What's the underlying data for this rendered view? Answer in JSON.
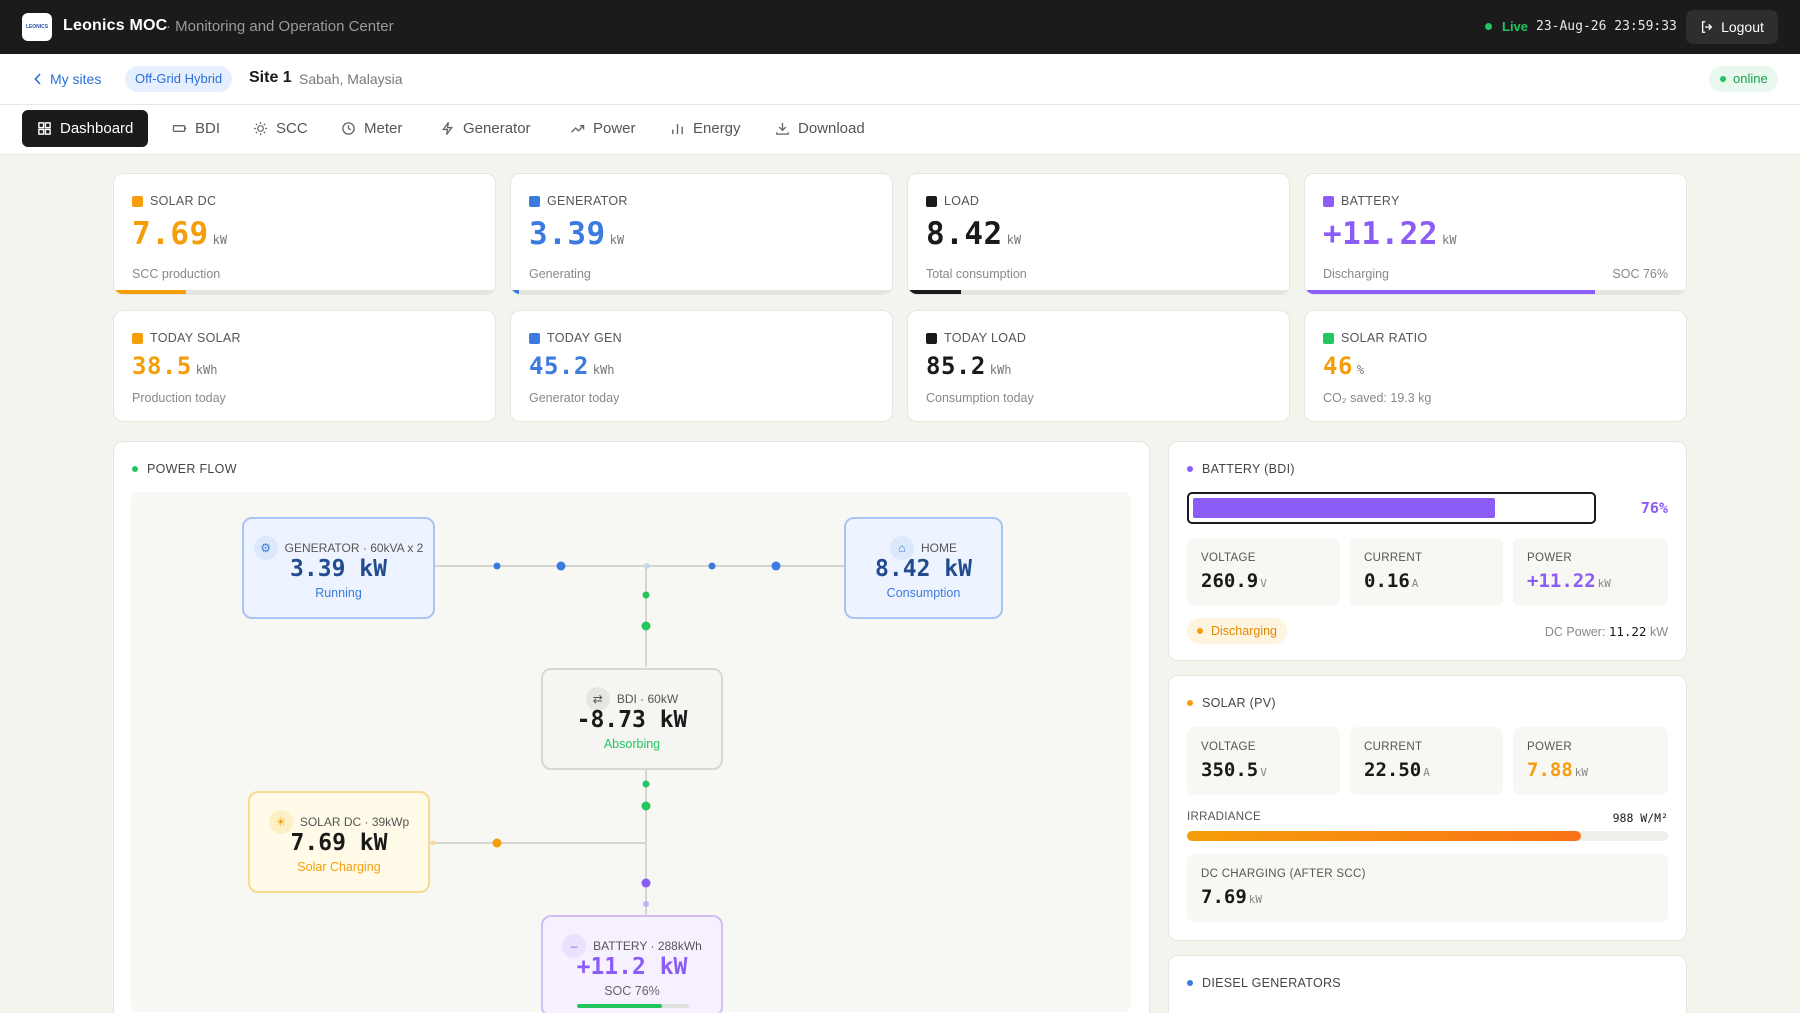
{
  "header": {
    "logo_text": "LEONICS",
    "app_title": "Leonics MOC",
    "app_subtitle": "· Monitoring and Operation Center",
    "live_label": "Live",
    "datetime": "23-Aug-26 23:59:33",
    "logout_label": "Logout"
  },
  "site": {
    "back_label": "My sites",
    "type_tag": "Off-Grid Hybrid",
    "name": "Site 1",
    "location": "Sabah, Malaysia",
    "status": "online"
  },
  "tabs": [
    {
      "label": "Dashboard",
      "icon": "grid-icon"
    },
    {
      "label": "BDI",
      "icon": "battery-icon"
    },
    {
      "label": "SCC",
      "icon": "sun-icon"
    },
    {
      "label": "Meter",
      "icon": "clock-icon"
    },
    {
      "label": "Generator",
      "icon": "bolt-icon"
    },
    {
      "label": "Power",
      "icon": "trend-icon"
    },
    {
      "label": "Energy",
      "icon": "bar-chart-icon"
    },
    {
      "label": "Download",
      "icon": "download-icon"
    }
  ],
  "stats_row1": [
    {
      "label": "SOLAR DC",
      "value": "7.69",
      "unit": "kW",
      "desc": "SCC production",
      "color": "#f59e0b",
      "fill": 0.19
    },
    {
      "label": "GENERATOR",
      "value": "3.39",
      "unit": "kW",
      "desc": "Generating",
      "color": "#3b7be0",
      "fill": 0.02
    },
    {
      "label": "LOAD",
      "value": "8.42",
      "unit": "kW",
      "desc": "Total consumption",
      "color": "#1a1a1a",
      "fill": 0.14
    },
    {
      "label": "BATTERY",
      "value": "+11.22",
      "unit": "kW",
      "desc": "Discharging",
      "extra": "SOC 76%",
      "color": "#8b5cf6",
      "fill": 0.76
    }
  ],
  "stats_row2": [
    {
      "label": "TODAY SOLAR",
      "value": "38.5",
      "unit": "kWh",
      "desc": "Production today",
      "color": "#f59e0b",
      "value_color": "#f59e0b"
    },
    {
      "label": "TODAY GEN",
      "value": "45.2",
      "unit": "kWh",
      "desc": "Generator today",
      "color": "#3b7be0",
      "value_color": "#3b7be0"
    },
    {
      "label": "TODAY LOAD",
      "value": "85.2",
      "unit": "kWh",
      "desc": "Consumption today",
      "color": "#1a1a1a",
      "value_color": "#1a1a1a"
    },
    {
      "label": "SOLAR RATIO",
      "value": "46",
      "unit": "%",
      "desc": "CO₂ saved: 19.3 kg",
      "color": "#22c55e",
      "value_color": "#f59e0b"
    }
  ],
  "power_flow": {
    "title": "POWER FLOW",
    "generator": {
      "title": "GENERATOR · 60kVA x 2",
      "value": "3.39 kW",
      "status": "Running"
    },
    "home": {
      "title": "HOME",
      "value": "8.42 kW",
      "status": "Consumption"
    },
    "bdi": {
      "title": "BDI · 60kW",
      "value": "-8.73 kW",
      "status": "Absorbing"
    },
    "solar": {
      "title": "SOLAR DC · 39kWp",
      "value": "7.69 kW",
      "status": "Solar Charging"
    },
    "battery": {
      "title": "BATTERY · 288kWh",
      "value": "+11.2 kW",
      "status": "SOC 76%",
      "soc": 0.76
    }
  },
  "battery_panel": {
    "title": "BATTERY (BDI)",
    "percent": "76%",
    "level": 0.76,
    "voltage_label": "VOLTAGE",
    "voltage": "260.9",
    "voltage_unit": "V",
    "current_label": "CURRENT",
    "current": "0.16",
    "current_unit": "A",
    "power_label": "POWER",
    "power": "+11.22",
    "power_unit": "kW",
    "state": "Discharging",
    "dc_power_label": "DC Power:",
    "dc_power": "11.22",
    "dc_power_unit": "kW"
  },
  "solar_panel": {
    "title": "SOLAR (PV)",
    "voltage_label": "VOLTAGE",
    "voltage": "350.5",
    "voltage_unit": "V",
    "current_label": "CURRENT",
    "current": "22.50",
    "current_unit": "A",
    "power_label": "POWER",
    "power": "7.88",
    "power_unit": "kW",
    "irradiance_label": "IRRADIANCE",
    "irradiance": "988 W/M²",
    "irradiance_level": 0.82,
    "dc_label": "DC CHARGING (AFTER SCC)",
    "dc_value": "7.69",
    "dc_unit": "kW"
  },
  "diesel_panel": {
    "title": "DIESEL GENERATORS"
  }
}
